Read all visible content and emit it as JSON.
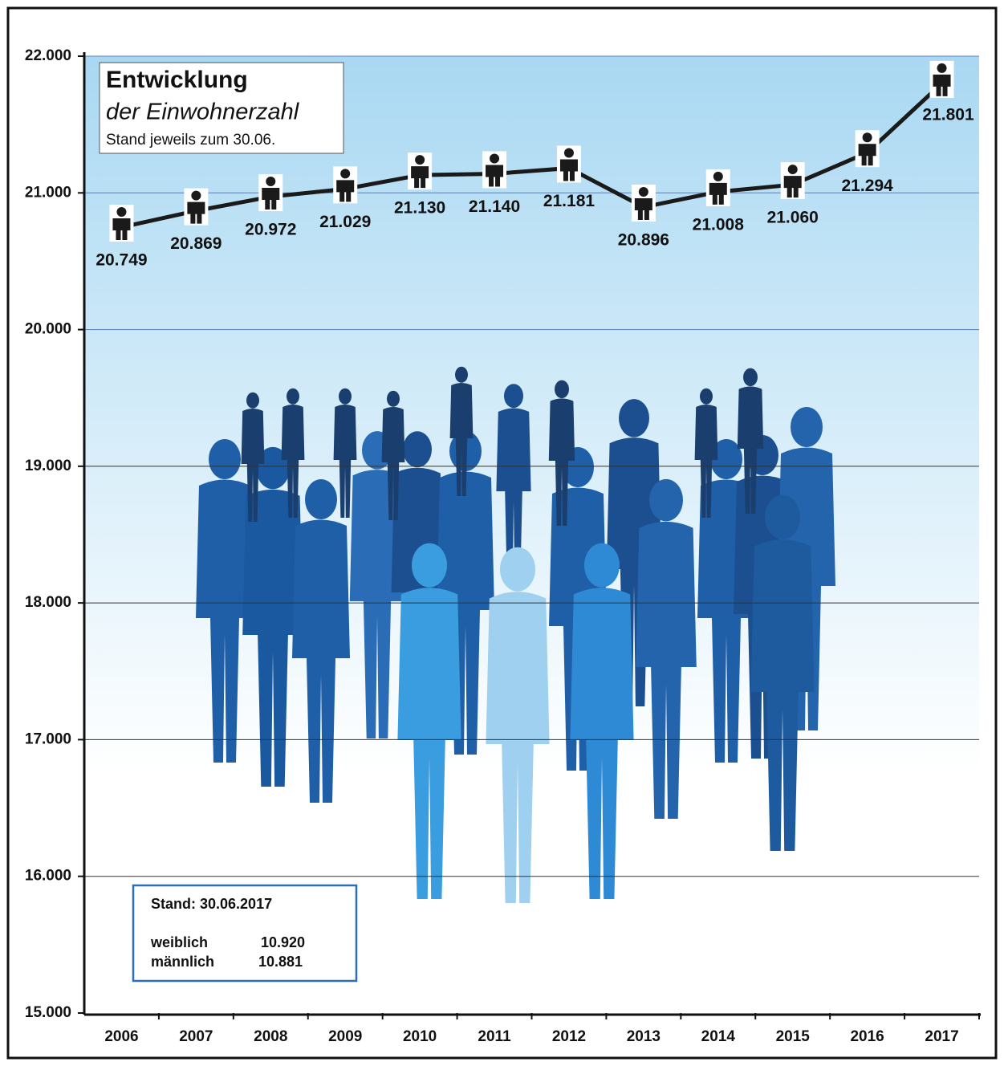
{
  "chart_data": {
    "type": "line",
    "title": "Entwicklung",
    "subtitle": "der Einwohnerzahl",
    "note": "Stand jeweils zum 30.06.",
    "categories": [
      "2006",
      "2007",
      "2008",
      "2009",
      "2010",
      "2011",
      "2012",
      "2013",
      "2014",
      "2015",
      "2016",
      "2017"
    ],
    "values": [
      20749,
      20869,
      20972,
      21029,
      21130,
      21140,
      21181,
      20896,
      21008,
      21060,
      21294,
      21801
    ],
    "value_labels": [
      "20.749",
      "20.869",
      "20.972",
      "21.029",
      "21.130",
      "21.140",
      "21.181",
      "20.896",
      "21.008",
      "21.060",
      "21.294",
      "21.801"
    ],
    "color": "#1a1a1a",
    "ylim": [
      15000,
      22000
    ],
    "yticks": [
      {
        "value": 15000,
        "label": "15.000"
      },
      {
        "value": 16000,
        "label": "16.000"
      },
      {
        "value": 17000,
        "label": "17.000"
      },
      {
        "value": 18000,
        "label": "18.000"
      },
      {
        "value": 19000,
        "label": "19.000"
      },
      {
        "value": 20000,
        "label": "20.000"
      },
      {
        "value": 21000,
        "label": "21.000"
      },
      {
        "value": 22000,
        "label": "22.000"
      }
    ],
    "grid": true,
    "info_box": {
      "title": "Stand: 30.06.2017",
      "rows": [
        {
          "label": "weiblich",
          "value": "10.920"
        },
        {
          "label": "männlich",
          "value": "10.881"
        }
      ]
    }
  }
}
